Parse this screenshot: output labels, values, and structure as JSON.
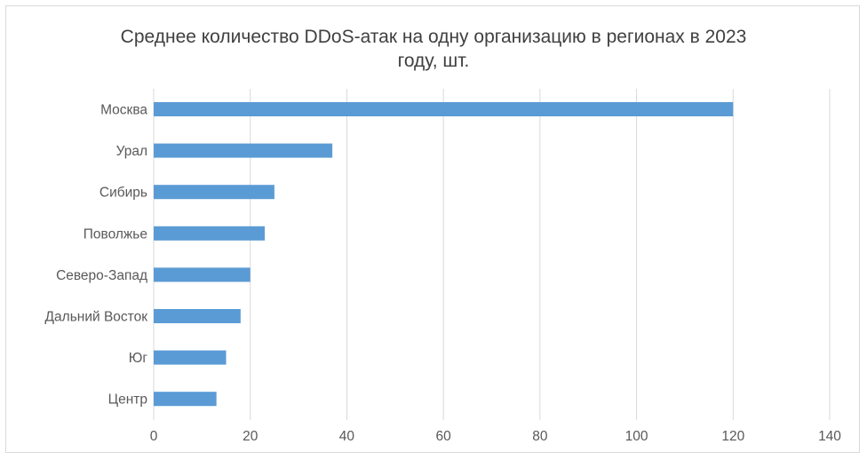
{
  "chart_data": {
    "type": "bar",
    "orientation": "horizontal",
    "title": "Среднее количество DDoS-атак на одну организацию в регионах в 2023 году, шт.",
    "title_lines": [
      "Среднее количество DDoS-атак на одну организацию в регионах в 2023",
      "году, шт."
    ],
    "categories": [
      "Москва",
      "Урал",
      "Сибирь",
      "Поволжье",
      "Северо-Запад",
      "Дальний Восток",
      "Юг",
      "Центр"
    ],
    "values": [
      120,
      37,
      25,
      23,
      20,
      18,
      15,
      13
    ],
    "xlim": [
      0,
      140
    ],
    "xticks": [
      "0",
      "20",
      "40",
      "60",
      "80",
      "100",
      "120",
      "140"
    ],
    "grid": "vertical",
    "legend": "none",
    "bar_color": "#5b9bd5",
    "grid_color": "#d9d9d9"
  }
}
